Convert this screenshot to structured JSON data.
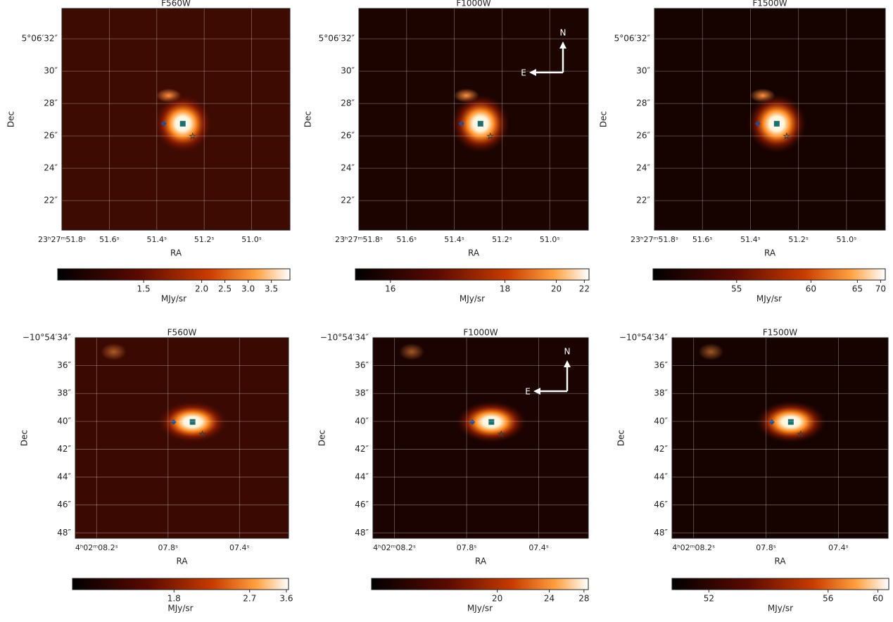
{
  "panels": [
    {
      "title": "F560W",
      "y_label": "Dec",
      "x_label": "RA",
      "yticks": [
        "5°06′32″",
        "30″",
        "28″",
        "26″",
        "24″",
        "22″"
      ],
      "xticks": [
        "23ʰ27ᵐ51.8ˢ",
        "51.6ˢ",
        "51.4ˢ",
        "51.2ˢ",
        "51.0ˢ"
      ],
      "colorbar_label": "MJy/sr",
      "colorbar_ticks": [
        "1.5",
        "2.0",
        "2.5",
        "3.0",
        "3.5"
      ]
    },
    {
      "title": "F1000W",
      "y_label": "Dec",
      "x_label": "RA",
      "yticks": [
        "5°06′32″",
        "30″",
        "28″",
        "26″",
        "24″",
        "22″"
      ],
      "xticks": [
        "23ʰ27ᵐ51.8ˢ",
        "51.6ˢ",
        "51.4ˢ",
        "51.2ˢ",
        "51.0ˢ"
      ],
      "colorbar_label": "MJy/sr",
      "colorbar_ticks": [
        "16",
        "18",
        "20",
        "22"
      ],
      "compass": {
        "north": "N",
        "east": "E"
      }
    },
    {
      "title": "F1500W",
      "y_label": "Dec",
      "x_label": "RA",
      "yticks": [
        "5°06′32″",
        "30″",
        "28″",
        "26″",
        "24″",
        "22″"
      ],
      "xticks": [
        "23ʰ27ᵐ51.8ˢ",
        "51.6ˢ",
        "51.4ˢ",
        "51.2ˢ",
        "51.0ˢ"
      ],
      "colorbar_label": "MJy/sr",
      "colorbar_ticks": [
        "55",
        "60",
        "65",
        "70"
      ]
    },
    {
      "title": "F560W",
      "y_label": "Dec",
      "x_label": "RA",
      "yticks": [
        "−10°54′34″",
        "36″",
        "38″",
        "40″",
        "42″",
        "44″",
        "46″",
        "48″"
      ],
      "xticks": [
        "4ʰ02ᵐ08.2ˢ",
        "07.8ˢ",
        "07.4ˢ"
      ],
      "colorbar_label": "MJy/sr",
      "colorbar_ticks": [
        "1.8",
        "2.7",
        "3.6"
      ]
    },
    {
      "title": "F1000W",
      "y_label": "Dec",
      "x_label": "RA",
      "yticks": [
        "−10°54′34″",
        "36″",
        "38″",
        "40″",
        "42″",
        "44″",
        "46″",
        "48″"
      ],
      "xticks": [
        "4ʰ02ᵐ08.2ˢ",
        "07.8ˢ",
        "07.4ˢ"
      ],
      "colorbar_label": "MJy/sr",
      "colorbar_ticks": [
        "20",
        "24",
        "28"
      ],
      "compass": {
        "north": "N",
        "east": "E"
      }
    },
    {
      "title": "F1500W",
      "y_label": "Dec",
      "x_label": "RA",
      "yticks": [
        "−10°54′34″",
        "36″",
        "38″",
        "40″",
        "42″",
        "44″",
        "46″",
        "48″"
      ],
      "xticks": [
        "4ʰ02ᵐ08.2ˢ",
        "07.8ˢ",
        "07.4ˢ"
      ],
      "colorbar_label": "MJy/sr",
      "colorbar_ticks": [
        "52",
        "56",
        "60"
      ]
    }
  ]
}
